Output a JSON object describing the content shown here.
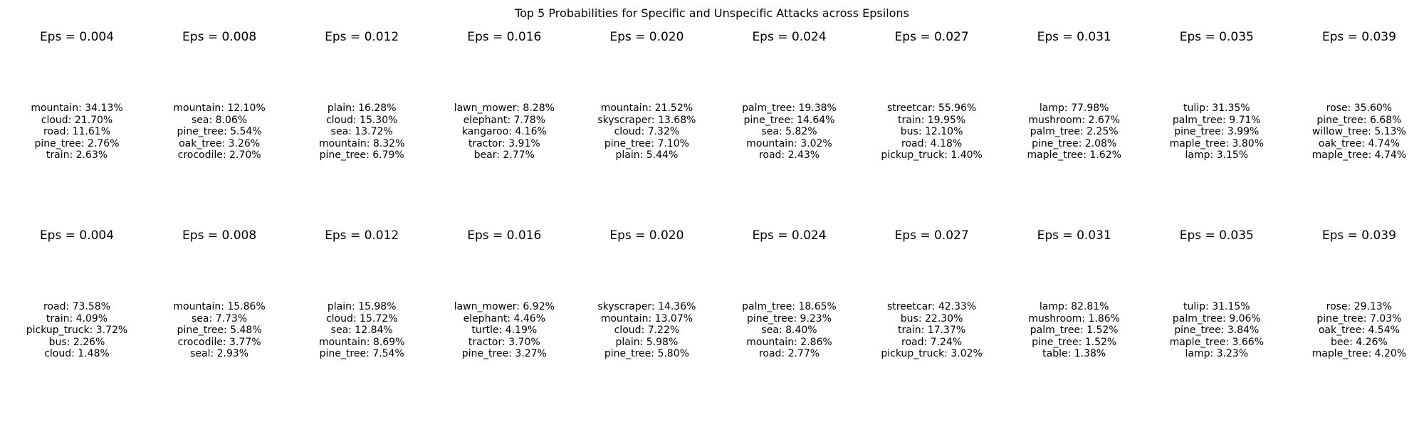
{
  "chart_data": {
    "type": "table",
    "title": "Top 5 Probabilities for Specific and Unspecific Attacks across Epsilons",
    "rows": [
      {
        "panels": [
          {
            "title": "Eps = 0.004",
            "entries": [
              "mountain: 34.13%",
              "cloud: 21.70%",
              "road: 11.61%",
              "pine_tree: 2.76%",
              "train: 2.63%"
            ]
          },
          {
            "title": "Eps = 0.008",
            "entries": [
              "mountain: 12.10%",
              "sea: 8.06%",
              "pine_tree: 5.54%",
              "oak_tree: 3.26%",
              "crocodile: 2.70%"
            ]
          },
          {
            "title": "Eps = 0.012",
            "entries": [
              "plain: 16.28%",
              "cloud: 15.30%",
              "sea: 13.72%",
              "mountain: 8.32%",
              "pine_tree: 6.79%"
            ]
          },
          {
            "title": "Eps = 0.016",
            "entries": [
              "lawn_mower: 8.28%",
              "elephant: 7.78%",
              "kangaroo: 4.16%",
              "tractor: 3.91%",
              "bear: 2.77%"
            ]
          },
          {
            "title": "Eps = 0.020",
            "entries": [
              "mountain: 21.52%",
              "skyscraper: 13.68%",
              "cloud: 7.32%",
              "pine_tree: 7.10%",
              "plain: 5.44%"
            ]
          },
          {
            "title": "Eps = 0.024",
            "entries": [
              "palm_tree: 19.38%",
              "pine_tree: 14.64%",
              "sea: 5.82%",
              "mountain: 3.02%",
              "road: 2.43%"
            ]
          },
          {
            "title": "Eps = 0.027",
            "entries": [
              "streetcar: 55.96%",
              "train: 19.95%",
              "bus: 12.10%",
              "road: 4.18%",
              "pickup_truck: 1.40%"
            ]
          },
          {
            "title": "Eps = 0.031",
            "entries": [
              "lamp: 77.98%",
              "mushroom: 2.67%",
              "palm_tree: 2.25%",
              "pine_tree: 2.08%",
              "maple_tree: 1.62%"
            ]
          },
          {
            "title": "Eps = 0.035",
            "entries": [
              "tulip: 31.35%",
              "palm_tree: 9.71%",
              "pine_tree: 3.99%",
              "maple_tree: 3.80%",
              "lamp: 3.15%"
            ]
          },
          {
            "title": "Eps = 0.039",
            "entries": [
              "rose: 35.60%",
              "pine_tree: 6.68%",
              "willow_tree: 5.13%",
              "oak_tree: 4.74%",
              "maple_tree: 4.74%"
            ]
          }
        ]
      },
      {
        "panels": [
          {
            "title": "Eps = 0.004",
            "entries": [
              "road: 73.58%",
              "train: 4.09%",
              "pickup_truck: 3.72%",
              "bus: 2.26%",
              "cloud: 1.48%"
            ]
          },
          {
            "title": "Eps = 0.008",
            "entries": [
              "mountain: 15.86%",
              "sea: 7.73%",
              "pine_tree: 5.48%",
              "crocodile: 3.77%",
              "seal: 2.93%"
            ]
          },
          {
            "title": "Eps = 0.012",
            "entries": [
              "plain: 15.98%",
              "cloud: 15.72%",
              "sea: 12.84%",
              "mountain: 8.69%",
              "pine_tree: 7.54%"
            ]
          },
          {
            "title": "Eps = 0.016",
            "entries": [
              "lawn_mower: 6.92%",
              "elephant: 4.46%",
              "turtle: 4.19%",
              "tractor: 3.70%",
              "pine_tree: 3.27%"
            ]
          },
          {
            "title": "Eps = 0.020",
            "entries": [
              "skyscraper: 14.36%",
              "mountain: 13.07%",
              "cloud: 7.22%",
              "plain: 5.98%",
              "pine_tree: 5.80%"
            ]
          },
          {
            "title": "Eps = 0.024",
            "entries": [
              "palm_tree: 18.65%",
              "pine_tree: 9.23%",
              "sea: 8.40%",
              "mountain: 2.86%",
              "road: 2.77%"
            ]
          },
          {
            "title": "Eps = 0.027",
            "entries": [
              "streetcar: 42.33%",
              "bus: 22.30%",
              "train: 17.37%",
              "road: 7.24%",
              "pickup_truck: 3.02%"
            ]
          },
          {
            "title": "Eps = 0.031",
            "entries": [
              "lamp: 82.81%",
              "mushroom: 1.86%",
              "palm_tree: 1.52%",
              "pine_tree: 1.52%",
              "table: 1.38%"
            ]
          },
          {
            "title": "Eps = 0.035",
            "entries": [
              "tulip: 31.15%",
              "palm_tree: 9.06%",
              "pine_tree: 3.84%",
              "maple_tree: 3.66%",
              "lamp: 3.23%"
            ]
          },
          {
            "title": "Eps = 0.039",
            "entries": [
              "rose: 29.13%",
              "pine_tree: 7.03%",
              "oak_tree: 4.54%",
              "bee: 4.26%",
              "maple_tree: 4.20%"
            ]
          }
        ]
      }
    ]
  }
}
